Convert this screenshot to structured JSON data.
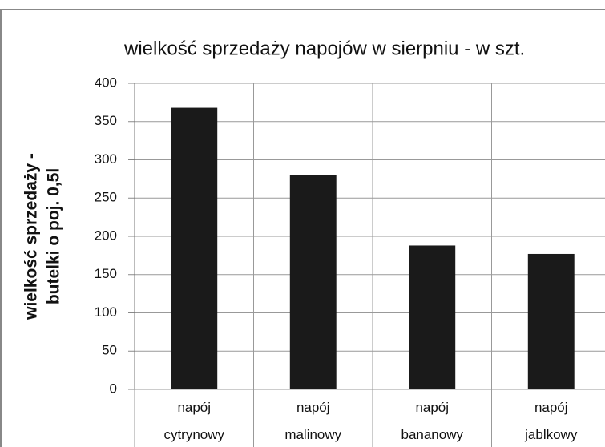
{
  "chart_data": {
    "type": "bar",
    "title": "wielkość sprzedaży napojów w sierpniu - w szt.",
    "ylabel": [
      "wielkość sprzedaży -",
      "butelki o poj. 0,5l"
    ],
    "categories": [
      "napój cytrynowy",
      "napój malinowy",
      "napój bananowy",
      "napój jablkowy"
    ],
    "values": [
      368,
      280,
      188,
      177
    ],
    "color": "#1a1a1a",
    "ylim": [
      0,
      400
    ],
    "yticks": [
      0,
      50,
      100,
      150,
      200,
      250,
      300,
      350,
      400
    ],
    "grid": true
  }
}
